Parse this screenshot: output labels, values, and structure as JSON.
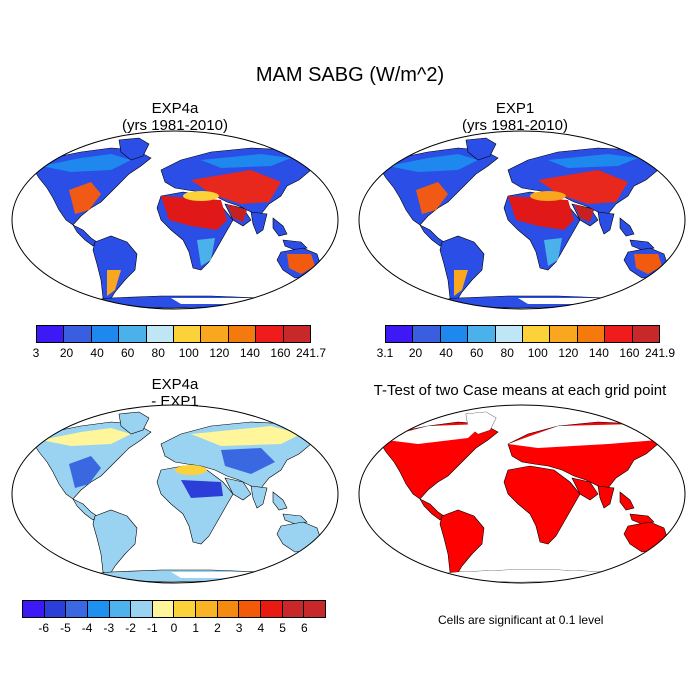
{
  "title": "MAM SABG (W/m^2)",
  "panels": {
    "exp4a": {
      "title_line1": "EXP4a",
      "title_line2": "(yrs 1981-2010)"
    },
    "exp1": {
      "title_line1": "EXP1",
      "title_line2": "(yrs 1981-2010)"
    },
    "diff": {
      "title_line1": "EXP4a",
      "title_line2": "- EXP1"
    },
    "ttest": {
      "title": "T-Test of two Case means at each grid point",
      "note": "Cells are significant at 0.1 level",
      "significant_color": "#ff0000"
    }
  },
  "colorbars": {
    "exp4a": {
      "labels": [
        "3",
        "20",
        "40",
        "60",
        "80",
        "100",
        "120",
        "140",
        "160",
        "241.7"
      ],
      "colors": [
        "#3d1af5",
        "#3a5ee0",
        "#1e88ee",
        "#4bb1ea",
        "#bfe6f5",
        "#fbd23a",
        "#f8a71e",
        "#f47a0d",
        "#ee1c1c",
        "#c8282a"
      ]
    },
    "exp1": {
      "labels": [
        "3.1",
        "20",
        "40",
        "60",
        "80",
        "100",
        "120",
        "140",
        "160",
        "241.9"
      ],
      "colors": [
        "#3d1af5",
        "#3a5ee0",
        "#1e88ee",
        "#4bb1ea",
        "#bfe6f5",
        "#fbd23a",
        "#f8a71e",
        "#f47a0d",
        "#ee1c1c",
        "#c8282a"
      ]
    },
    "diff": {
      "labels": [
        "-6",
        "-5",
        "-4",
        "-3",
        "-2",
        "-1",
        "0",
        "1",
        "2",
        "3",
        "4",
        "5",
        "6"
      ],
      "colors": [
        "#3d1af5",
        "#2b3ed8",
        "#3a68e0",
        "#1e90f0",
        "#4eb3ec",
        "#9ad3f2",
        "#fff59a",
        "#fbd23a",
        "#f8b424",
        "#f58a10",
        "#f25a0a",
        "#e81a12",
        "#c8282a",
        "#c8282a"
      ]
    }
  }
}
